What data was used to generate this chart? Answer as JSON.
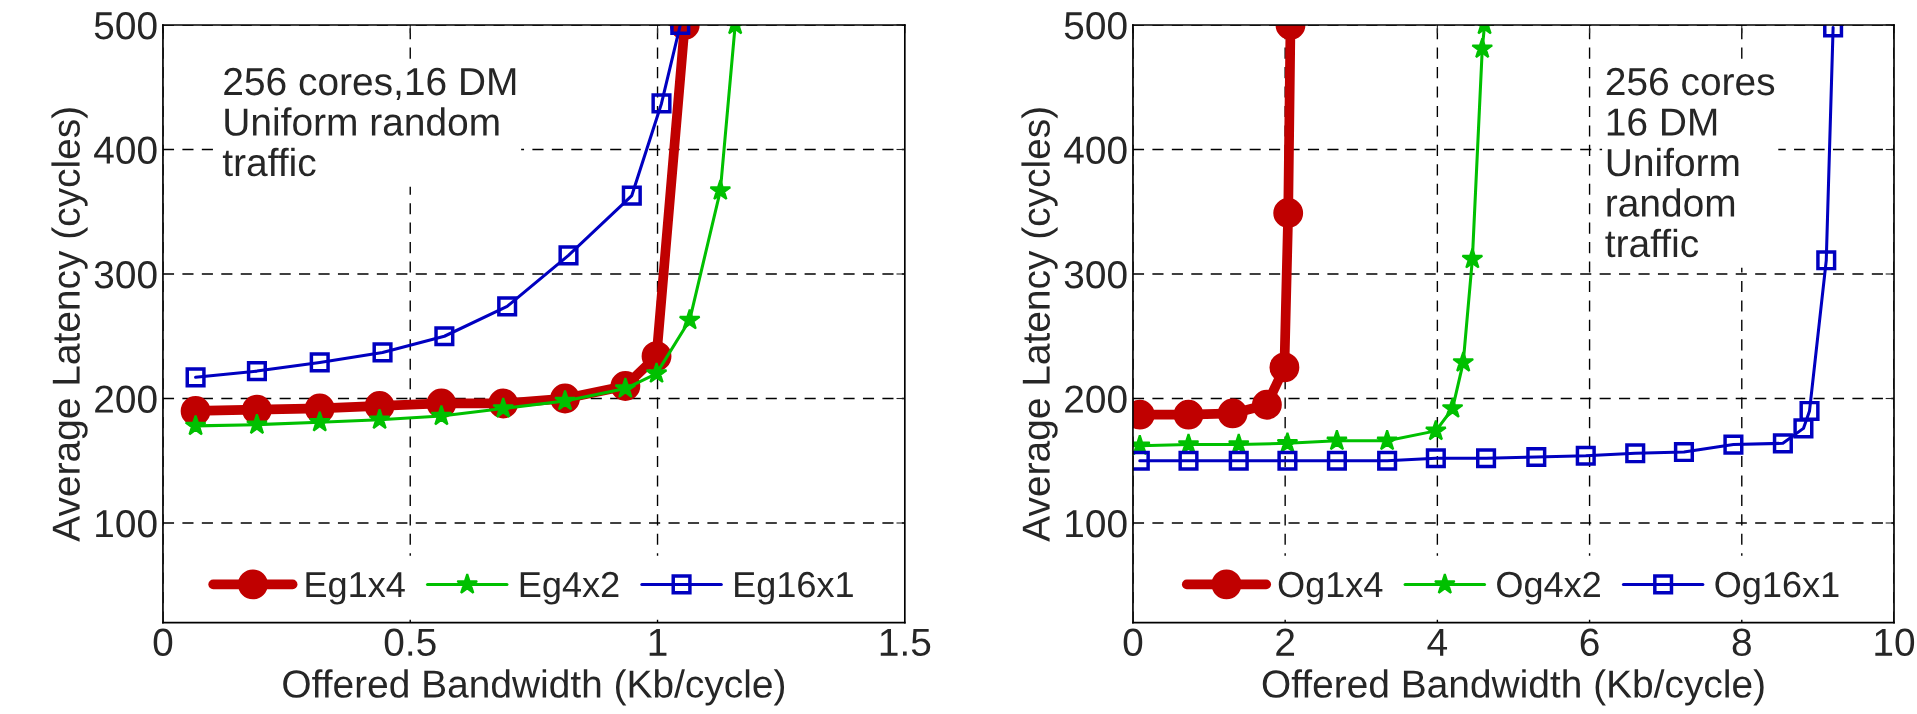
{
  "chart_data": [
    {
      "type": "line",
      "xlabel": "Offered Bandwidth (Kb/cycle)",
      "ylabel": "Average Latency (cycles)",
      "xlim": [
        0,
        1.5
      ],
      "xticks": [
        0,
        0.5,
        1,
        1.5
      ],
      "ylim": [
        20,
        500
      ],
      "yticks": [
        100,
        200,
        300,
        400,
        500
      ],
      "grid": true,
      "legend": "bottom",
      "annotations": [
        "256 cores,16 DM\nUniform random\ntraffic"
      ],
      "series": [
        {
          "name": "Eg1x4",
          "color": "#c00000",
          "marker": "circle",
          "x": [
            0.066,
            0.19,
            0.317,
            0.438,
            0.563,
            0.688,
            0.813,
            0.935,
            0.998,
            1.055
          ],
          "values": [
            190,
            191,
            192,
            194,
            196,
            196,
            200,
            210,
            234,
            500
          ]
        },
        {
          "name": "Eg4x2",
          "color": "#00c000",
          "marker": "star",
          "x": [
            0.066,
            0.19,
            0.317,
            0.438,
            0.563,
            0.688,
            0.813,
            0.935,
            0.998,
            1.065,
            1.127,
            1.157
          ],
          "values": [
            178,
            179,
            181,
            183,
            186,
            192,
            198,
            208,
            220,
            263,
            367,
            500
          ]
        },
        {
          "name": "Eg16x1",
          "color": "#0000c0",
          "marker": "square",
          "x": [
            0.066,
            0.19,
            0.317,
            0.444,
            0.569,
            0.696,
            0.82,
            0.948,
            1.008,
            1.046
          ],
          "values": [
            217,
            222,
            229,
            237,
            250,
            274,
            315,
            363,
            437,
            500
          ]
        }
      ]
    },
    {
      "type": "line",
      "xlabel": "Offered Bandwidth (Kb/cycle)",
      "ylabel": "Average Latency (cycles)",
      "xlim": [
        0,
        10
      ],
      "xticks": [
        0,
        2,
        4,
        6,
        8,
        10
      ],
      "ylim": [
        20,
        500
      ],
      "yticks": [
        100,
        200,
        300,
        400,
        500
      ],
      "grid": true,
      "legend": "bottom",
      "annotations": [
        "256 cores\n16 DM\nUniform\nrandom\ntraffic"
      ],
      "series": [
        {
          "name": "Og1x4",
          "color": "#c00000",
          "marker": "circle",
          "x": [
            0.09,
            0.73,
            1.31,
            1.76,
            1.99,
            2.04,
            2.07
          ],
          "values": [
            187,
            187,
            188,
            195,
            225,
            349,
            500
          ]
        },
        {
          "name": "Og4x2",
          "color": "#00c000",
          "marker": "star",
          "x": [
            0.09,
            0.73,
            1.39,
            2.03,
            2.68,
            3.34,
            3.98,
            4.2,
            4.34,
            4.46,
            4.59,
            4.62
          ],
          "values": [
            162,
            163,
            163,
            164,
            166,
            166,
            174,
            192,
            229,
            312,
            481,
            500
          ]
        },
        {
          "name": "Og16x1",
          "color": "#0000c0",
          "marker": "square",
          "x": [
            0.09,
            0.73,
            1.39,
            2.03,
            2.68,
            3.34,
            3.98,
            4.64,
            5.3,
            5.95,
            6.6,
            7.24,
            7.89,
            8.54,
            8.81,
            8.89,
            9.11,
            9.2
          ],
          "values": [
            150,
            150,
            150,
            150,
            150,
            150,
            152,
            152,
            153,
            154,
            156,
            157,
            163,
            164,
            176,
            190,
            311,
            498
          ]
        }
      ]
    }
  ]
}
